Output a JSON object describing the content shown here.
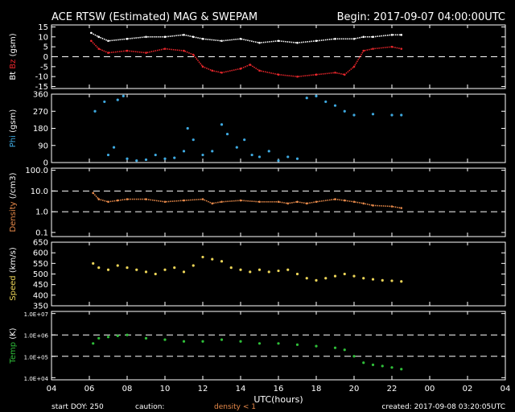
{
  "title": "ACE RTSW (Estimated) MAG & SWEPAM",
  "begin_label": "Begin: 2017-09-07 04:00:00UTC",
  "footer": {
    "start_doy": "start DOY: 250",
    "caution_label": "caution:",
    "caution_note": "density < 1",
    "created": "created: 2017-09-08 03:20:05UTC"
  },
  "x_axis_label": "UTC(hours)",
  "x_ticks": [
    "04",
    "06",
    "08",
    "10",
    "12",
    "14",
    "16",
    "18",
    "20",
    "22",
    "00",
    "02",
    "04"
  ],
  "colors": {
    "background": "#000000",
    "axes": "#ffffff",
    "bt": "#ffffff",
    "bz": "#e8262b",
    "phi": "#3ea9e0",
    "density": "#e88a4a",
    "speed": "#ecd558",
    "temp": "#2fbf39",
    "caution": "#e88a4a"
  },
  "chart_data": [
    {
      "type": "line",
      "ylabel_parts": [
        "Bt",
        "Bz",
        "(gsm)"
      ],
      "yticks": [
        "15",
        "10",
        "5",
        "0",
        "-5",
        "-10",
        "-15"
      ],
      "ylim": [
        -16,
        16
      ],
      "dashed_lines": [
        0
      ],
      "x_range_hours": [
        4,
        28
      ],
      "series": [
        {
          "name": "Bt",
          "x": [
            6.1,
            6.5,
            7.0,
            8.0,
            9.0,
            10.0,
            11.0,
            11.5,
            12.0,
            13.0,
            14.0,
            15.0,
            16.0,
            17.0,
            18.0,
            19.0,
            20.0,
            20.5,
            21.0,
            22.0,
            22.5
          ],
          "y": [
            12,
            10,
            8,
            9,
            10,
            10,
            11,
            10,
            9,
            8,
            9,
            7,
            8,
            7,
            8,
            9,
            9,
            10,
            10,
            11,
            11
          ]
        },
        {
          "name": "Bz",
          "x": [
            6.1,
            6.5,
            7.0,
            8.0,
            9.0,
            10.0,
            11.0,
            11.5,
            12.0,
            12.5,
            13.0,
            14.0,
            14.5,
            15.0,
            16.0,
            17.0,
            18.0,
            19.0,
            19.5,
            20.0,
            20.5,
            21.0,
            22.0,
            22.5
          ],
          "y": [
            8,
            4,
            2,
            3,
            2,
            4,
            3,
            1,
            -5,
            -7,
            -8,
            -6,
            -4,
            -7,
            -9,
            -10,
            -9,
            -8,
            -9,
            -5,
            3,
            4,
            5,
            4
          ]
        }
      ]
    },
    {
      "type": "scatter",
      "ylabel_parts": [
        "Phi",
        "(gsm)"
      ],
      "yticks": [
        "360",
        "270",
        "180",
        "90",
        "0"
      ],
      "ylim": [
        0,
        360
      ],
      "x_range_hours": [
        4,
        28
      ],
      "series": [
        {
          "name": "Phi",
          "x": [
            6.3,
            6.8,
            7.0,
            7.3,
            7.5,
            7.8,
            8.0,
            8.5,
            9.0,
            9.5,
            10.0,
            10.5,
            11.0,
            11.2,
            11.5,
            12.0,
            12.5,
            13.0,
            13.3,
            13.8,
            14.2,
            14.6,
            15.0,
            15.5,
            16.0,
            16.5,
            17.0,
            17.5,
            18.0,
            18.5,
            19.0,
            19.5,
            20.0,
            21.0,
            22.0,
            22.5
          ],
          "y": [
            270,
            320,
            40,
            80,
            330,
            350,
            20,
            10,
            15,
            40,
            20,
            25,
            60,
            180,
            120,
            40,
            60,
            200,
            150,
            80,
            120,
            40,
            30,
            60,
            10,
            30,
            20,
            340,
            350,
            320,
            300,
            270,
            250,
            255,
            250,
            250
          ]
        }
      ]
    },
    {
      "type": "line",
      "ylabel_parts": [
        "Density",
        "(/cm3)"
      ],
      "yticks": [
        "100.0",
        "10.0",
        "1.0",
        "0.1"
      ],
      "ylim_log10": [
        -1.2,
        2.1
      ],
      "dashed_lines": [
        10,
        1
      ],
      "x_range_hours": [
        4,
        28
      ],
      "series": [
        {
          "name": "Density",
          "x": [
            6.2,
            6.5,
            7.0,
            7.5,
            8.0,
            9.0,
            10.0,
            11.0,
            12.0,
            12.5,
            13.0,
            14.0,
            15.0,
            16.0,
            16.5,
            17.0,
            17.5,
            18.0,
            19.0,
            19.5,
            20.0,
            20.5,
            21.0,
            22.0,
            22.5
          ],
          "y": [
            8,
            4,
            3,
            3.5,
            4,
            4,
            3,
            3.5,
            4,
            2.5,
            3,
            3.5,
            3,
            3,
            2.5,
            3,
            2.5,
            3,
            4,
            3.5,
            3,
            2.5,
            2,
            1.8,
            1.5
          ]
        }
      ]
    },
    {
      "type": "scatter",
      "ylabel_parts": [
        "Speed",
        "(km/s)"
      ],
      "yticks": [
        "650",
        "600",
        "550",
        "500",
        "450",
        "400",
        "350"
      ],
      "ylim": [
        350,
        650
      ],
      "x_range_hours": [
        4,
        28
      ],
      "series": [
        {
          "name": "Speed",
          "x": [
            6.2,
            6.5,
            7.0,
            7.5,
            8.0,
            8.5,
            9.0,
            9.5,
            10.0,
            10.5,
            11.0,
            11.5,
            12.0,
            12.5,
            13.0,
            13.5,
            14.0,
            14.5,
            15.0,
            15.5,
            16.0,
            16.5,
            17.0,
            17.5,
            18.0,
            18.5,
            19.0,
            19.5,
            20.0,
            20.5,
            21.0,
            21.5,
            22.0,
            22.5
          ],
          "y": [
            550,
            530,
            520,
            540,
            530,
            520,
            510,
            500,
            520,
            530,
            510,
            540,
            580,
            570,
            560,
            530,
            520,
            510,
            520,
            510,
            515,
            520,
            500,
            480,
            470,
            480,
            490,
            500,
            490,
            480,
            475,
            470,
            468,
            465
          ]
        }
      ]
    },
    {
      "type": "scatter",
      "ylabel_parts": [
        "Temp",
        "(K)"
      ],
      "yticks": [
        "1.0E+07",
        "1.0E+06",
        "1.0E+05",
        "1.0E+04"
      ],
      "ylim_log10": [
        3.9,
        7.1
      ],
      "dashed_lines": [
        1000000,
        100000
      ],
      "x_range_hours": [
        4,
        28
      ],
      "series": [
        {
          "name": "Temp",
          "x": [
            6.2,
            6.5,
            7.0,
            7.5,
            8.0,
            9.0,
            10.0,
            11.0,
            12.0,
            13.0,
            14.0,
            15.0,
            16.0,
            17.0,
            18.0,
            19.0,
            19.5,
            20.0,
            20.5,
            21.0,
            21.5,
            22.0,
            22.5
          ],
          "y": [
            400000,
            700000,
            800000,
            900000,
            1000000,
            700000,
            600000,
            500000,
            500000,
            600000,
            500000,
            400000,
            400000,
            350000,
            300000,
            250000,
            200000,
            100000,
            50000,
            40000,
            35000,
            30000,
            25000
          ]
        }
      ]
    }
  ]
}
